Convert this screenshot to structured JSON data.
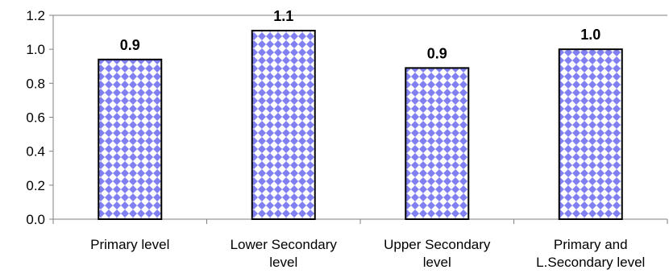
{
  "chart_data": {
    "type": "bar",
    "title": "",
    "xlabel": "",
    "ylabel": "",
    "categories": [
      [
        "Primary level"
      ],
      [
        "Lower Secondary",
        "level"
      ],
      [
        "Upper Secondary",
        "level"
      ],
      [
        "Primary and",
        "L.Secondary level"
      ]
    ],
    "values": [
      0.94,
      1.11,
      0.89,
      1.0
    ],
    "data_labels": [
      "0.9",
      "1.1",
      "0.9",
      "1.0"
    ],
    "ylim": [
      0,
      1.2
    ],
    "yticks": [
      "0.0",
      "0.2",
      "0.4",
      "0.6",
      "0.8",
      "1.0",
      "1.2"
    ],
    "grid": false,
    "legend": "none",
    "bar_fill_pattern": "diamond-check",
    "colors": {
      "bar_pattern_dark": "#8080f0",
      "bar_pattern_light": "#ffffff",
      "bar_outline": "#000000",
      "axis": "#808080",
      "text": "#000000"
    }
  }
}
